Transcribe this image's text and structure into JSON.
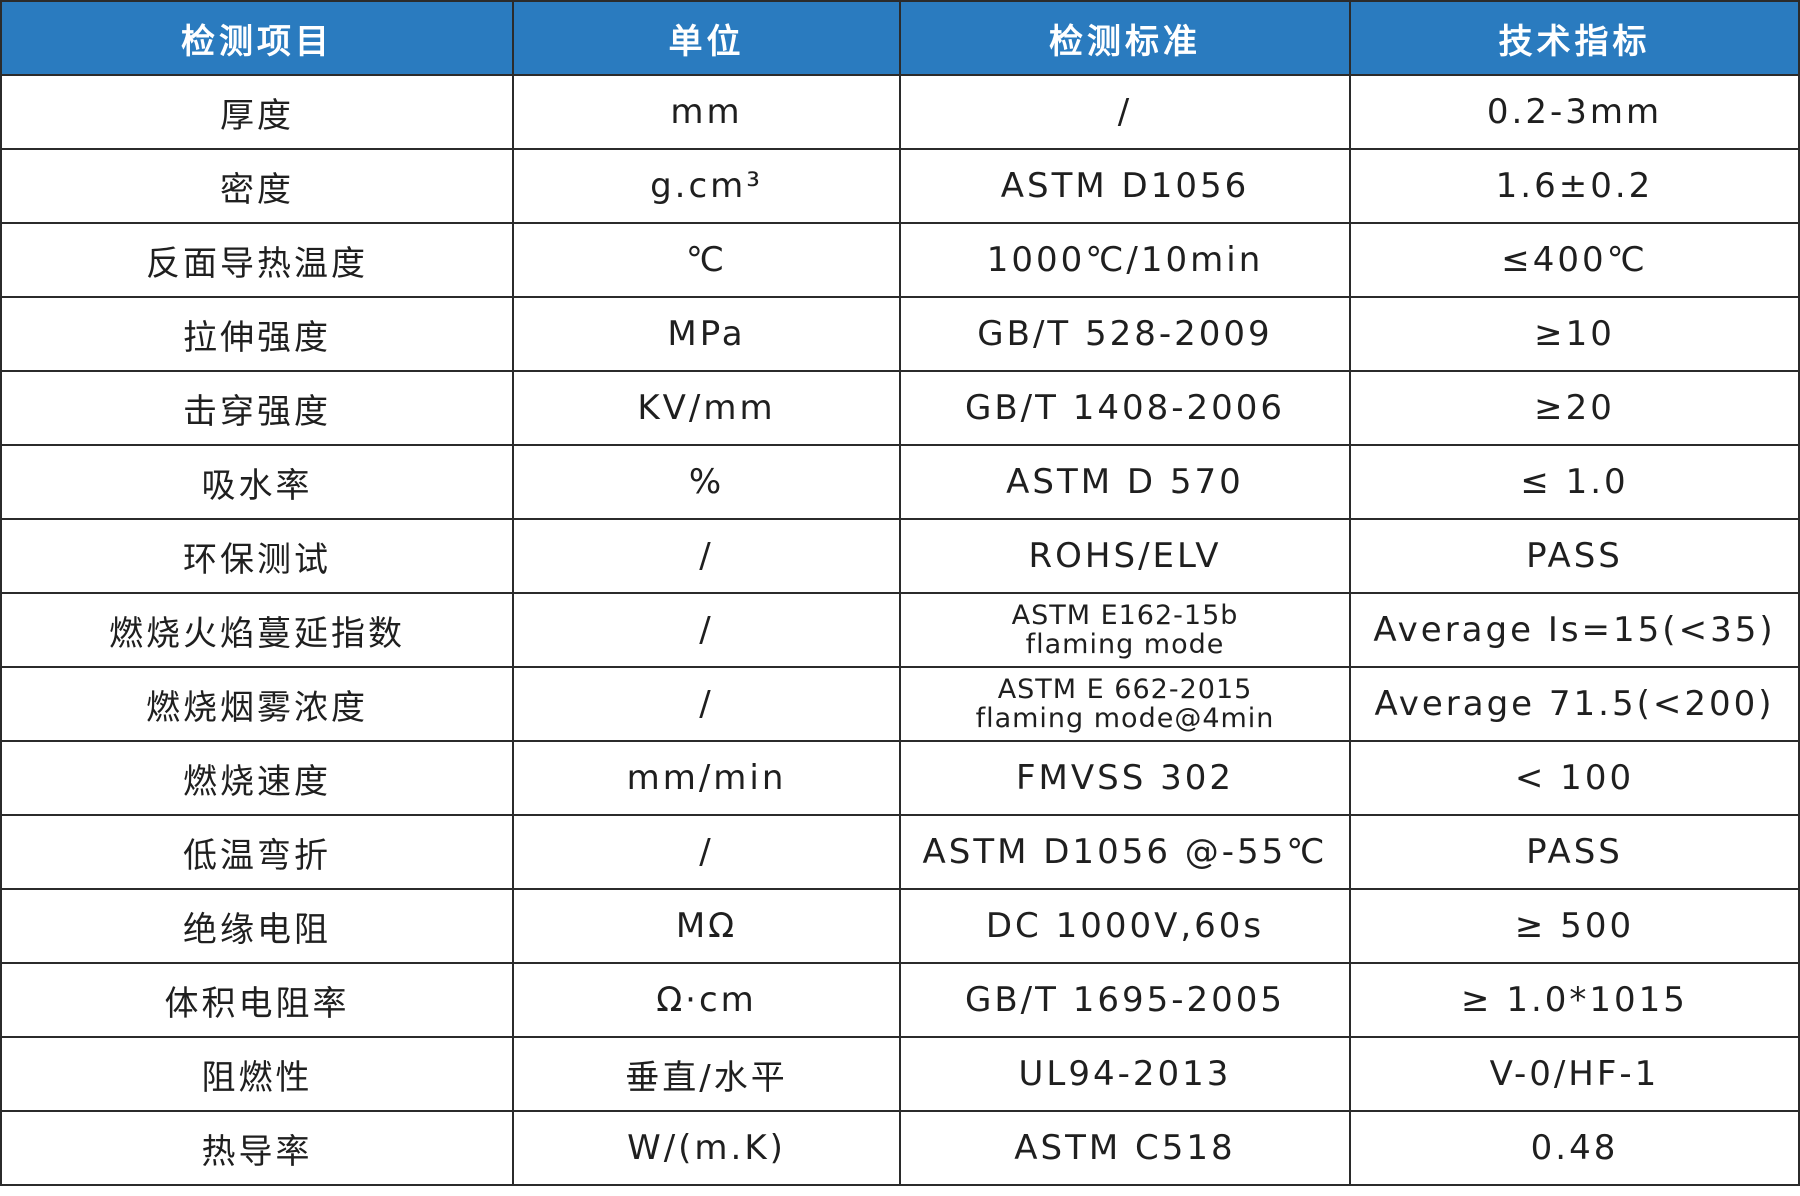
{
  "colors": {
    "header_bg": "#2a7bbf",
    "header_text": "#ffffff",
    "border": "#2b2b2b"
  },
  "header": [
    "检测项目",
    "单位",
    "检测标准",
    "技术指标"
  ],
  "rows": [
    {
      "item": "厚度",
      "unit": "mm",
      "standard": [
        "/"
      ],
      "spec": "0.2-3mm"
    },
    {
      "item": "密度",
      "unit": "g.cm³",
      "standard": [
        "ASTM D1056"
      ],
      "spec": "1.6±0.2"
    },
    {
      "item": "反面导热温度",
      "unit": "℃",
      "standard": [
        "1000℃/10min"
      ],
      "spec": "≤400℃"
    },
    {
      "item": "拉伸强度",
      "unit": "MPa",
      "standard": [
        "GB/T 528-2009"
      ],
      "spec": "≥10"
    },
    {
      "item": "击穿强度",
      "unit": "KV/mm",
      "standard": [
        "GB/T 1408-2006"
      ],
      "spec": "≥20"
    },
    {
      "item": "吸水率",
      "unit": "%",
      "standard": [
        "ASTM D 570"
      ],
      "spec": "≤ 1.0"
    },
    {
      "item": "环保测试",
      "unit": "/",
      "standard": [
        "ROHS/ELV"
      ],
      "spec": "PASS"
    },
    {
      "item": "燃烧火焰蔓延指数",
      "unit": "/",
      "standard": [
        "ASTM E162-15b",
        "flaming mode"
      ],
      "spec": "Average Is=15(<35)"
    },
    {
      "item": "燃烧烟雾浓度",
      "unit": "/",
      "standard": [
        "ASTM E 662-2015",
        "flaming mode@4min"
      ],
      "spec": "Average 71.5(<200)"
    },
    {
      "item": "燃烧速度",
      "unit": "mm/min",
      "standard": [
        "FMVSS 302"
      ],
      "spec": "< 100"
    },
    {
      "item": "低温弯折",
      "unit": "/",
      "standard": [
        "ASTM D1056 @-55℃"
      ],
      "spec": "PASS"
    },
    {
      "item": "绝缘电阻",
      "unit": "MΩ",
      "standard": [
        "DC 1000V,60s"
      ],
      "spec": "≥ 500"
    },
    {
      "item": "体积电阻率",
      "unit": "Ω·cm",
      "standard": [
        "GB/T 1695-2005"
      ],
      "spec": "≥ 1.0*1015"
    },
    {
      "item": "阻燃性",
      "unit": "垂直/水平",
      "standard": [
        "UL94-2013"
      ],
      "spec": "V-0/HF-1"
    },
    {
      "item": "热导率",
      "unit": "W/(m.K)",
      "standard": [
        "ASTM C518"
      ],
      "spec": "0.48"
    }
  ]
}
